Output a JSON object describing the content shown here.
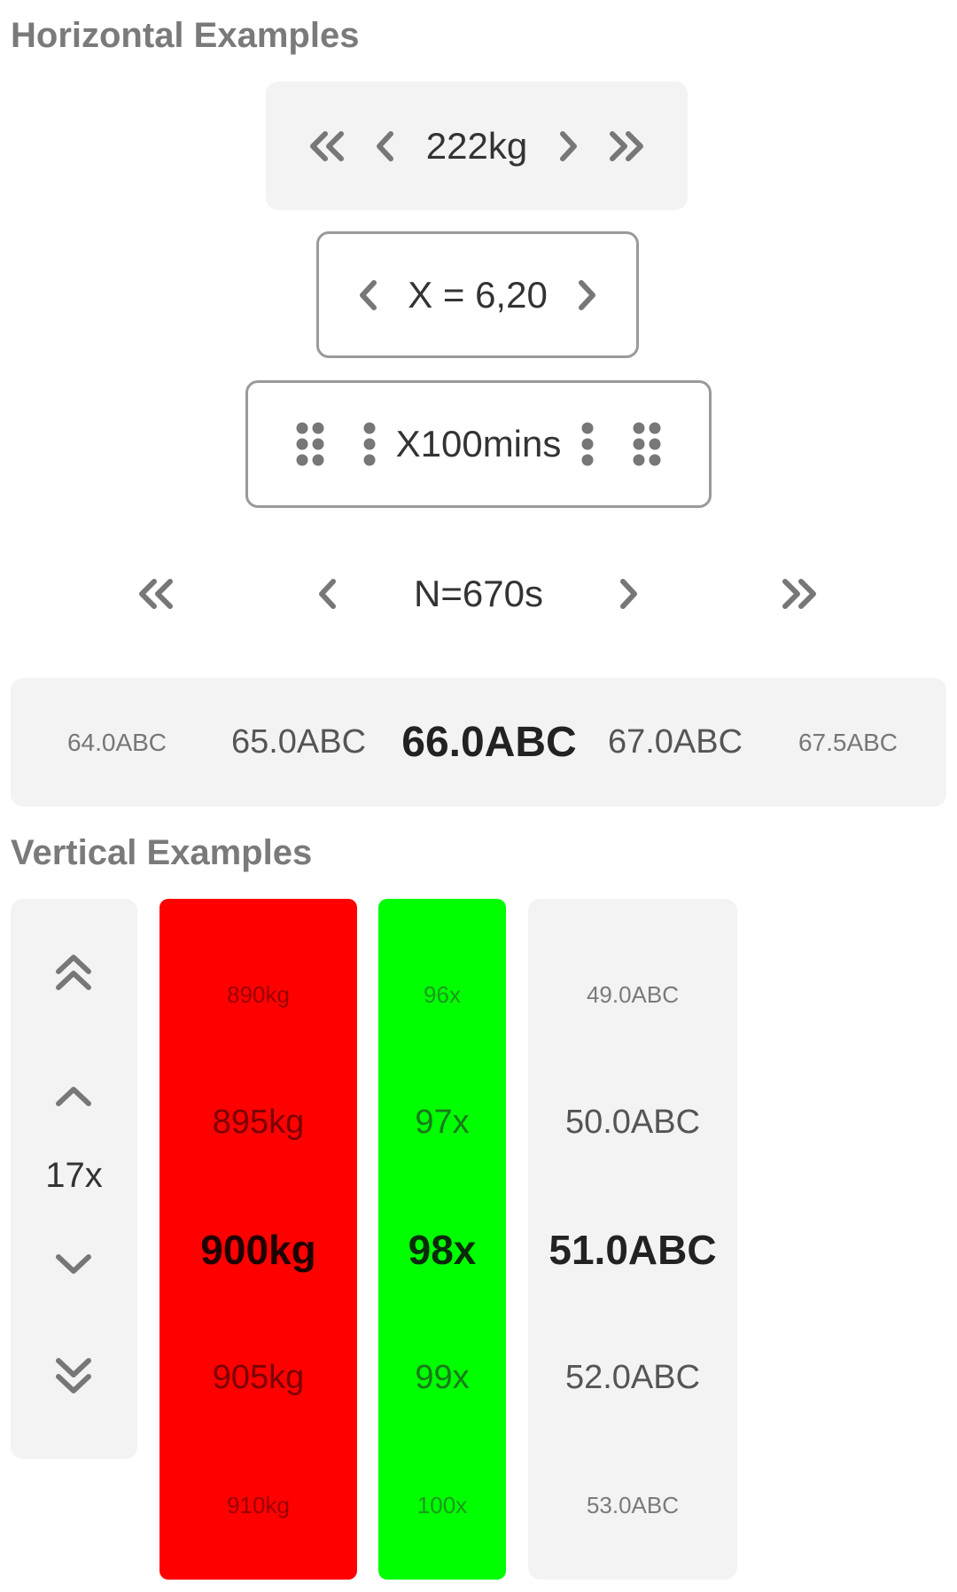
{
  "sections": {
    "horizontal_title": "Horizontal Examples",
    "vertical_title": "Vertical Examples"
  },
  "colors": {
    "icon": "#777777",
    "gray_bg": "#f3f3f3",
    "red_picker": "#ff0000",
    "green_picker": "#00ff00",
    "outline": "#9a9a9a"
  },
  "horizontal": {
    "picker1": {
      "value": "222kg",
      "icons": [
        "double-chevron-left-icon",
        "chevron-left-icon",
        "chevron-right-icon",
        "double-chevron-right-icon"
      ]
    },
    "picker2": {
      "value": "X = 6,20",
      "icons": [
        "chevron-left-icon",
        "chevron-right-icon"
      ]
    },
    "picker3": {
      "value": "X100mins",
      "icons": [
        "six-dot-grip-icon",
        "three-dot-grip-icon",
        "three-dot-grip-icon",
        "six-dot-grip-icon"
      ]
    },
    "picker4": {
      "value": "N=670s",
      "icons": [
        "double-chevron-left-icon",
        "chevron-left-icon",
        "chevron-right-icon",
        "double-chevron-right-icon"
      ]
    },
    "picker5": {
      "items": [
        "64.0ABC",
        "65.0ABC",
        "66.0ABC",
        "67.0ABC",
        "67.5ABC"
      ],
      "selected": "66.0ABC"
    }
  },
  "vertical": {
    "stepper": {
      "value": "17x",
      "icons": [
        "double-chevron-up-icon",
        "chevron-up-icon",
        "chevron-down-icon",
        "double-chevron-down-icon"
      ]
    },
    "kg_picker": {
      "items": [
        "890kg",
        "895kg",
        "900kg",
        "905kg",
        "910kg"
      ],
      "selected": "900kg"
    },
    "x_picker": {
      "items": [
        "96x",
        "97x",
        "98x",
        "99x",
        "100x"
      ],
      "selected": "98x"
    },
    "abc_picker": {
      "items": [
        "49.0ABC",
        "50.0ABC",
        "51.0ABC",
        "52.0ABC",
        "53.0ABC"
      ],
      "selected": "51.0ABC"
    }
  }
}
